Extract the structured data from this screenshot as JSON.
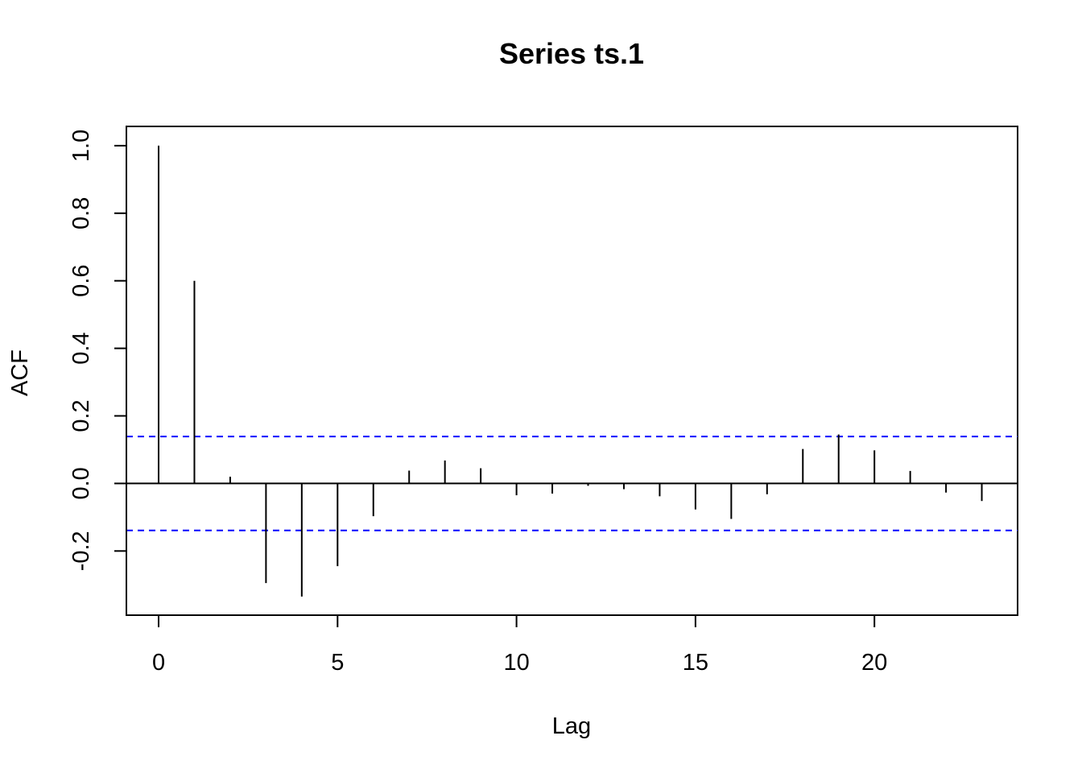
{
  "chart_data": {
    "type": "bar",
    "title": "Series  ts.1",
    "xlabel": "Lag",
    "ylabel": "ACF",
    "x": [
      0,
      1,
      2,
      3,
      4,
      5,
      6,
      7,
      8,
      9,
      10,
      11,
      12,
      13,
      14,
      15,
      16,
      17,
      18,
      19,
      20,
      21,
      22,
      23
    ],
    "values": [
      1.0,
      0.6,
      0.02,
      -0.295,
      -0.335,
      -0.245,
      -0.097,
      0.038,
      0.068,
      0.045,
      -0.035,
      -0.03,
      -0.007,
      -0.017,
      -0.038,
      -0.077,
      -0.105,
      -0.032,
      0.102,
      0.145,
      0.098,
      0.037,
      -0.027,
      -0.052
    ],
    "confidence_bound": 0.139,
    "xlim": [
      -0.9,
      24
    ],
    "ylim": [
      -0.39,
      1.057
    ],
    "x_ticks": [
      0,
      5,
      10,
      15,
      20
    ],
    "x_tick_labels": [
      "0",
      "5",
      "10",
      "15",
      "20"
    ],
    "y_ticks": [
      -0.2,
      0.0,
      0.2,
      0.4,
      0.6,
      0.8,
      1.0
    ],
    "y_tick_labels": [
      "-0.2",
      "0.0",
      "0.2",
      "0.4",
      "0.6",
      "0.8",
      "1.0"
    ],
    "grid": false,
    "colors": {
      "bars": "#000000",
      "confidence": "#0000ff",
      "zero_line": "#000000"
    }
  }
}
